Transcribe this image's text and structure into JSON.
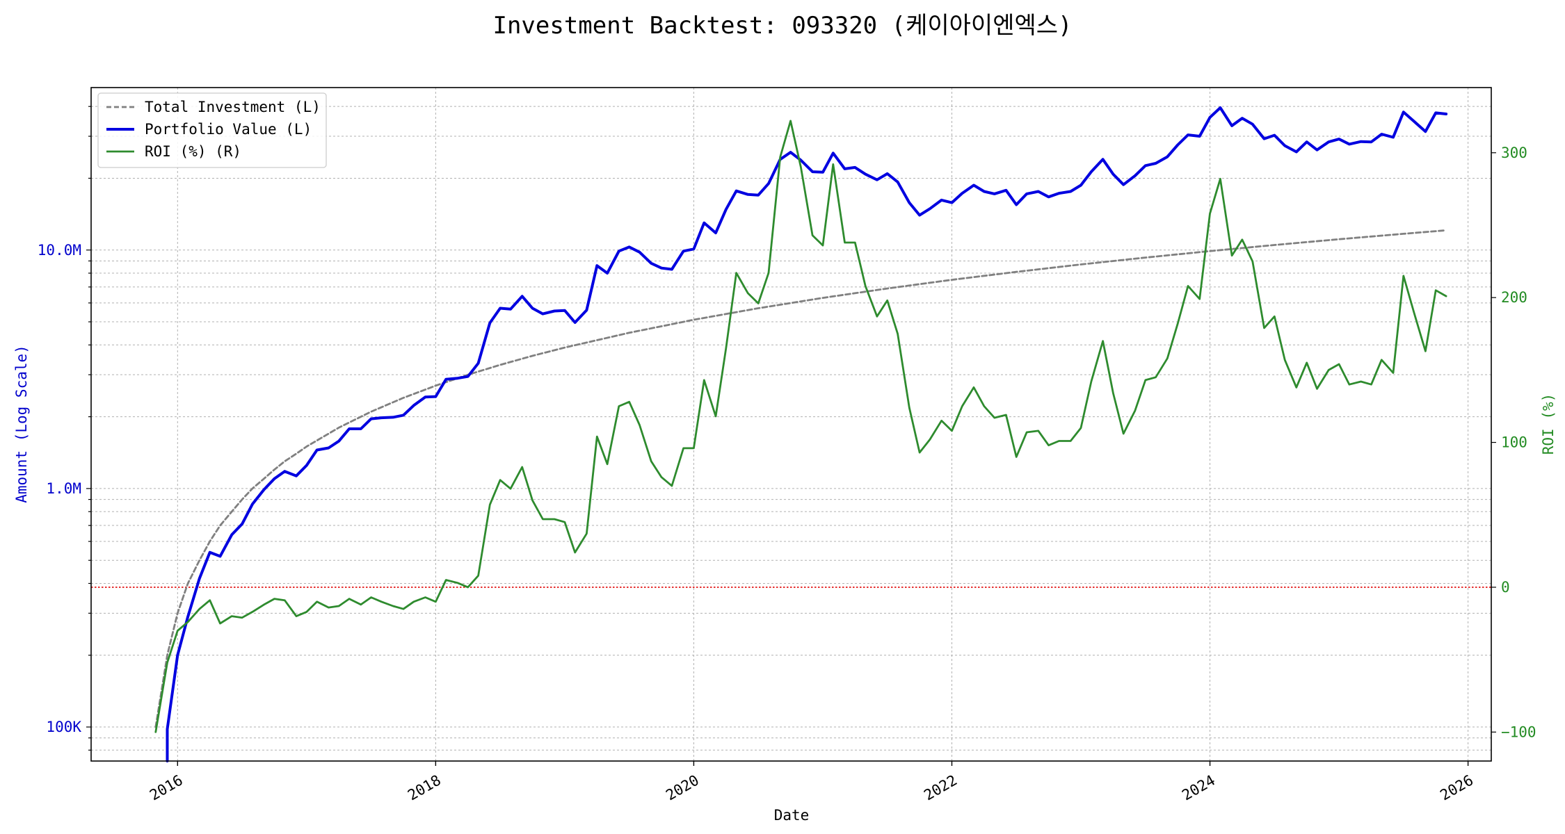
{
  "chart_data": {
    "type": "line",
    "title": "Investment Backtest: 093320 (케이아이엔엑스)",
    "xlabel": "Date",
    "ylabel_left": "Amount (Log Scale)",
    "ylabel_right": "ROI (%)",
    "y_left_scale": "log",
    "y_left_range": [
      72000,
      48000000
    ],
    "y_right_range": [
      -120,
      345
    ],
    "x_range": [
      2015.33,
      2026.18
    ],
    "grid": true,
    "legend_location": "upper-left",
    "colors": {
      "total_investment": "#808080",
      "portfolio_value": "#0000e0",
      "roi": "#2e8b2e",
      "zero_line": "#e00000",
      "left_axis_text": "#0000cc",
      "right_axis_text": "#228b22"
    },
    "x_ticks": [
      {
        "value": 2016,
        "label": "2016"
      },
      {
        "value": 2018,
        "label": "2018"
      },
      {
        "value": 2020,
        "label": "2020"
      },
      {
        "value": 2022,
        "label": "2022"
      },
      {
        "value": 2024,
        "label": "2024"
      },
      {
        "value": 2026,
        "label": "2026"
      }
    ],
    "y_left_ticks": [
      {
        "value": 100000,
        "label": "100K"
      },
      {
        "value": 1000000,
        "label": "1.0M"
      },
      {
        "value": 10000000,
        "label": "10.0M"
      }
    ],
    "y_right_ticks": [
      {
        "value": -100,
        "label": "−100"
      },
      {
        "value": 0,
        "label": "0"
      },
      {
        "value": 100,
        "label": "100"
      },
      {
        "value": 200,
        "label": "200"
      },
      {
        "value": 300,
        "label": "300"
      }
    ],
    "series": [
      {
        "name": "Total Investment (L)",
        "axis": "left",
        "style": "dashed",
        "x": [
          2015.83,
          2015.92,
          2016.0,
          2016.08,
          2016.17,
          2016.25,
          2016.33,
          2016.42,
          2016.5,
          2016.58,
          2016.67,
          2016.75,
          2016.83,
          2016.92,
          2017.0,
          2017.25,
          2017.5,
          2017.75,
          2018.0,
          2018.25,
          2018.5,
          2018.75,
          2019.0,
          2019.5,
          2020.0,
          2020.5,
          2021.0,
          2021.5,
          2022.0,
          2022.5,
          2023.0,
          2023.5,
          2024.0,
          2024.5,
          2025.0,
          2025.5,
          2025.83
        ],
        "y": [
          100000,
          200000,
          300000,
          400000,
          500000,
          600000,
          700000,
          800000,
          900000,
          1000000,
          1100000,
          1200000,
          1300000,
          1400000,
          1500000,
          1800000,
          2100000,
          2400000,
          2700000,
          3000000,
          3300000,
          3600000,
          3900000,
          4500000,
          5100000,
          5700000,
          6300000,
          6900000,
          7500000,
          8100000,
          8700000,
          9300000,
          9900000,
          10500000,
          11100000,
          11700000,
          12100000
        ]
      },
      {
        "name": "Portfolio Value (L)",
        "axis": "left",
        "style": "solid-thick",
        "x": [
          2015.92,
          2015.92,
          2016.0,
          2016.08,
          2016.17,
          2016.25,
          2016.33,
          2016.42,
          2016.5,
          2016.58,
          2016.67,
          2016.75,
          2016.83,
          2016.92,
          2017.0,
          2017.08,
          2017.17,
          2017.25,
          2017.33,
          2017.42,
          2017.5,
          2017.58,
          2017.67,
          2017.75,
          2017.83,
          2017.92,
          2018.0,
          2018.08,
          2018.17,
          2018.25,
          2018.33,
          2018.42,
          2018.5,
          2018.58,
          2018.67,
          2018.75,
          2018.83,
          2018.92,
          2019.0,
          2019.08,
          2019.17,
          2019.25,
          2019.33,
          2019.42,
          2019.5,
          2019.58,
          2019.67,
          2019.75,
          2019.83,
          2019.92,
          2020.0,
          2020.08,
          2020.17,
          2020.25,
          2020.33,
          2020.42,
          2020.5,
          2020.58,
          2020.67,
          2020.75,
          2020.83,
          2020.92,
          2021.0,
          2021.08,
          2021.17,
          2021.25,
          2021.33,
          2021.42,
          2021.5,
          2021.58,
          2021.67,
          2021.75,
          2021.83,
          2021.92,
          2022.0,
          2022.08,
          2022.17,
          2022.25,
          2022.33,
          2022.42,
          2022.5,
          2022.58,
          2022.67,
          2022.75,
          2022.83,
          2022.92,
          2023.0,
          2023.08,
          2023.17,
          2023.25,
          2023.33,
          2023.42,
          2023.5,
          2023.58,
          2023.67,
          2023.75,
          2023.83,
          2023.92,
          2024.0,
          2024.08,
          2024.17,
          2024.25,
          2024.33,
          2024.42,
          2024.5,
          2024.58,
          2024.67,
          2024.75,
          2024.83,
          2024.92,
          2025.0,
          2025.08,
          2025.17,
          2025.25,
          2025.33,
          2025.42,
          2025.5,
          2025.58,
          2025.67,
          2025.75,
          2025.83
        ],
        "y": [
          72000,
          98000,
          200000,
          290000,
          420000,
          540000,
          520000,
          640000,
          710000,
          860000,
          990000,
          1100000,
          1180000,
          1130000,
          1250000,
          1450000,
          1480000,
          1580000,
          1780000,
          1780000,
          1960000,
          1980000,
          1990000,
          2030000,
          2230000,
          2420000,
          2430000,
          2870000,
          2900000,
          2950000,
          3350000,
          4950000,
          5700000,
          5650000,
          6400000,
          5700000,
          5400000,
          5550000,
          5580000,
          4970000,
          5600000,
          8600000,
          8000000,
          9900000,
          10300000,
          9800000,
          8800000,
          8400000,
          8300000,
          9900000,
          10100000,
          13000000,
          11800000,
          14800000,
          17700000,
          17100000,
          17000000,
          19000000,
          24000000,
          25700000,
          23800000,
          21300000,
          21200000,
          25500000,
          21900000,
          22200000,
          20800000,
          19700000,
          20900000,
          19300000,
          15800000,
          14000000,
          14900000,
          16200000,
          15800000,
          17300000,
          18700000,
          17600000,
          17200000,
          17800000,
          15500000,
          17200000,
          17600000,
          16700000,
          17300000,
          17600000,
          18700000,
          21300000,
          24000000,
          20800000,
          18800000,
          20500000,
          22600000,
          23100000,
          24600000,
          27600000,
          30400000,
          30000000,
          36000000,
          39500000,
          33200000,
          35700000,
          33700000,
          29300000,
          30300000,
          27400000,
          25800000,
          28400000,
          26300000,
          28400000,
          29200000,
          27800000,
          28500000,
          28400000,
          30600000,
          29700000,
          37900000,
          34700000,
          31400000,
          37600000,
          37200000
        ]
      },
      {
        "name": "ROI (%) (R)",
        "axis": "right",
        "style": "solid-thin",
        "x": [
          2015.83,
          2015.92,
          2016.0,
          2016.08,
          2016.17,
          2016.25,
          2016.33,
          2016.42,
          2016.5,
          2016.58,
          2016.67,
          2016.75,
          2016.83,
          2016.92,
          2017.0,
          2017.08,
          2017.17,
          2017.25,
          2017.33,
          2017.42,
          2017.5,
          2017.58,
          2017.67,
          2017.75,
          2017.83,
          2017.92,
          2018.0,
          2018.08,
          2018.17,
          2018.25,
          2018.33,
          2018.42,
          2018.5,
          2018.58,
          2018.67,
          2018.75,
          2018.83,
          2018.92,
          2019.0,
          2019.08,
          2019.17,
          2019.25,
          2019.33,
          2019.42,
          2019.5,
          2019.58,
          2019.67,
          2019.75,
          2019.83,
          2019.92,
          2020.0,
          2020.08,
          2020.17,
          2020.25,
          2020.33,
          2020.42,
          2020.5,
          2020.58,
          2020.67,
          2020.75,
          2020.83,
          2020.92,
          2021.0,
          2021.08,
          2021.17,
          2021.25,
          2021.33,
          2021.42,
          2021.5,
          2021.58,
          2021.67,
          2021.75,
          2021.83,
          2021.92,
          2022.0,
          2022.08,
          2022.17,
          2022.25,
          2022.33,
          2022.42,
          2022.5,
          2022.58,
          2022.67,
          2022.75,
          2022.83,
          2022.92,
          2023.0,
          2023.08,
          2023.17,
          2023.25,
          2023.33,
          2023.42,
          2023.5,
          2023.58,
          2023.67,
          2023.75,
          2023.83,
          2023.92,
          2024.0,
          2024.08,
          2024.17,
          2024.25,
          2024.33,
          2024.42,
          2024.5,
          2024.58,
          2024.67,
          2024.75,
          2024.83,
          2024.92,
          2025.0,
          2025.08,
          2025.17,
          2025.25,
          2025.33,
          2025.42,
          2025.5,
          2025.58,
          2025.67,
          2025.75,
          2025.83
        ],
        "y": [
          -100,
          -52,
          -30,
          -24,
          -15,
          -9,
          -25,
          -20,
          -21,
          -17,
          -12,
          -8,
          -9,
          -20,
          -17,
          -10,
          -14,
          -13,
          -8,
          -12,
          -7,
          -10,
          -13,
          -15,
          -10,
          -7,
          -10,
          5,
          3,
          0,
          8,
          57,
          74,
          68,
          83,
          60,
          47,
          47,
          45,
          24,
          37,
          104,
          85,
          125,
          128,
          112,
          87,
          76,
          70,
          96,
          96,
          143,
          118,
          165,
          217,
          203,
          196,
          217,
          297,
          322,
          290,
          243,
          236,
          292,
          238,
          238,
          208,
          187,
          198,
          175,
          124,
          93,
          102,
          115,
          108,
          125,
          138,
          125,
          117,
          119,
          90,
          107,
          108,
          98,
          101,
          101,
          110,
          142,
          170,
          134,
          106,
          122,
          143,
          145,
          158,
          182,
          208,
          199,
          258,
          282,
          229,
          240,
          225,
          179,
          187,
          157,
          138,
          155,
          137,
          150,
          154,
          140,
          142,
          140,
          157,
          148,
          215,
          190,
          163,
          205,
          201
        ]
      }
    ],
    "zero_line": {
      "axis": "right",
      "value": 0
    }
  }
}
